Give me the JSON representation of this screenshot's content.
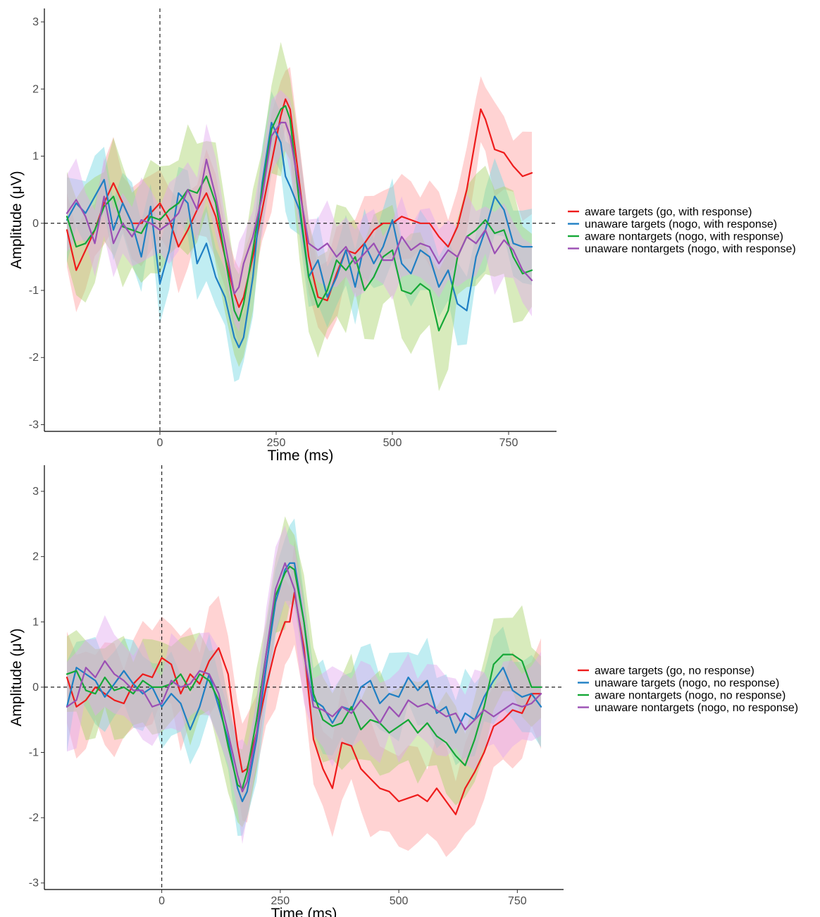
{
  "colors": {
    "aware_targets": "#ee1c1c",
    "unaware_targets": "#1f7fc4",
    "aware_nontargets": "#15a837",
    "unaware_nontargets": "#9b4fb4"
  },
  "chart_data": [
    {
      "type": "line",
      "title": "",
      "xlabel": "Time (ms)",
      "ylabel": "Amplitude (μV)",
      "xlim": [
        -200,
        800
      ],
      "ylim": [
        -3.1,
        3.2
      ],
      "xticks": [
        0,
        250,
        500,
        750
      ],
      "yticks": [
        3,
        2,
        1,
        0,
        -1,
        -2,
        -3
      ],
      "grid": false,
      "legend_position": "right",
      "reference_lines": {
        "x": 0,
        "y": 0
      },
      "series": [
        {
          "name": "aware targets (go, with response)",
          "color_key": "aware_targets",
          "band_color": "#ff9e9e",
          "x": [
            -200,
            -180,
            -160,
            -140,
            -120,
            -100,
            -80,
            -60,
            -40,
            -20,
            0,
            20,
            40,
            60,
            80,
            100,
            120,
            140,
            160,
            170,
            180,
            200,
            220,
            240,
            260,
            270,
            280,
            300,
            320,
            340,
            360,
            380,
            400,
            420,
            440,
            460,
            480,
            500,
            520,
            540,
            560,
            580,
            600,
            620,
            640,
            660,
            680,
            690,
            700,
            720,
            740,
            760,
            780,
            800
          ],
          "y": [
            -0.1,
            -0.7,
            -0.4,
            -0.1,
            0.3,
            0.6,
            0.3,
            0.0,
            0.0,
            0.15,
            0.3,
            0.05,
            -0.35,
            -0.1,
            0.2,
            0.45,
            0.1,
            -0.5,
            -1.05,
            -1.25,
            -1.1,
            -0.5,
            0.2,
            0.9,
            1.6,
            1.85,
            1.7,
            0.6,
            -0.5,
            -1.1,
            -1.15,
            -0.75,
            -0.4,
            -0.45,
            -0.3,
            -0.1,
            0.0,
            0.0,
            0.1,
            0.05,
            0.0,
            0.0,
            -0.2,
            -0.35,
            -0.05,
            0.5,
            1.3,
            1.7,
            1.55,
            1.1,
            1.05,
            0.85,
            0.7,
            0.75
          ],
          "band_half_width": 0.55
        },
        {
          "name": "unaware targets (nogo, with response)",
          "color_key": "unaware_targets",
          "band_color": "#74d7e3",
          "x": [
            -200,
            -180,
            -160,
            -140,
            -120,
            -100,
            -80,
            -60,
            -40,
            -20,
            0,
            20,
            40,
            60,
            80,
            100,
            120,
            140,
            160,
            170,
            180,
            200,
            220,
            240,
            260,
            270,
            280,
            300,
            320,
            340,
            360,
            380,
            400,
            420,
            440,
            460,
            480,
            500,
            520,
            540,
            560,
            580,
            600,
            620,
            640,
            660,
            680,
            700,
            720,
            740,
            760,
            780,
            800
          ],
          "y": [
            0.05,
            0.3,
            0.15,
            0.4,
            0.65,
            -0.1,
            0.3,
            0.0,
            -0.5,
            0.25,
            -0.9,
            -0.4,
            0.45,
            0.3,
            -0.6,
            -0.3,
            -0.8,
            -1.1,
            -1.7,
            -1.85,
            -1.7,
            -0.8,
            0.6,
            1.5,
            1.2,
            0.7,
            0.55,
            0.2,
            -0.8,
            -0.55,
            -1.1,
            -0.8,
            -0.4,
            -0.95,
            -0.3,
            -0.6,
            -0.35,
            0.05,
            -0.6,
            -0.75,
            -0.4,
            -0.5,
            -0.95,
            -0.7,
            -1.2,
            -1.3,
            -0.5,
            -0.1,
            0.4,
            0.2,
            -0.3,
            -0.35,
            -0.35
          ],
          "band_half_width": 0.5
        },
        {
          "name": "aware nontargets (nogo, with response)",
          "color_key": "aware_nontargets",
          "band_color": "#a9d36b",
          "x": [
            -200,
            -180,
            -160,
            -140,
            -120,
            -100,
            -80,
            -60,
            -40,
            -20,
            0,
            20,
            40,
            60,
            80,
            100,
            120,
            140,
            160,
            170,
            180,
            200,
            220,
            240,
            260,
            270,
            280,
            300,
            320,
            340,
            360,
            380,
            400,
            420,
            440,
            460,
            480,
            500,
            520,
            540,
            560,
            580,
            600,
            620,
            640,
            660,
            680,
            700,
            720,
            740,
            760,
            780,
            800
          ],
          "y": [
            0.1,
            -0.35,
            -0.3,
            -0.1,
            0.25,
            0.4,
            -0.05,
            -0.1,
            -0.15,
            0.1,
            0.05,
            0.2,
            0.3,
            0.5,
            0.45,
            0.7,
            0.3,
            -0.5,
            -1.3,
            -1.45,
            -1.2,
            -0.4,
            0.5,
            1.4,
            1.7,
            1.75,
            1.55,
            0.3,
            -0.8,
            -1.25,
            -1.0,
            -0.55,
            -0.7,
            -0.5,
            -1.0,
            -0.8,
            -0.5,
            -0.4,
            -1.0,
            -1.05,
            -0.9,
            -1.0,
            -1.6,
            -1.3,
            -0.5,
            -0.2,
            -0.1,
            0.05,
            -0.15,
            -0.1,
            -0.5,
            -0.75,
            -0.7
          ],
          "band_half_width": 0.75
        },
        {
          "name": "unaware nontargets (nogo,  with response)",
          "color_key": "unaware_nontargets",
          "band_color": "#e3a8f0",
          "x": [
            -200,
            -180,
            -160,
            -140,
            -120,
            -100,
            -80,
            -60,
            -40,
            -20,
            0,
            20,
            40,
            60,
            80,
            100,
            120,
            140,
            160,
            170,
            180,
            200,
            220,
            240,
            260,
            270,
            280,
            300,
            320,
            340,
            360,
            380,
            400,
            420,
            440,
            460,
            480,
            500,
            520,
            540,
            560,
            580,
            600,
            620,
            640,
            660,
            680,
            700,
            720,
            740,
            760,
            780,
            800
          ],
          "y": [
            0.15,
            0.35,
            0.1,
            -0.3,
            0.4,
            -0.3,
            0.0,
            -0.2,
            0.05,
            0.0,
            -0.1,
            0.0,
            0.15,
            0.5,
            0.2,
            0.95,
            0.4,
            -0.3,
            -1.05,
            -0.95,
            -0.6,
            -0.2,
            0.4,
            1.3,
            1.5,
            1.5,
            1.3,
            0.5,
            -0.3,
            -0.4,
            -0.3,
            -0.5,
            -0.35,
            -0.6,
            -0.45,
            -0.3,
            -0.55,
            -0.55,
            -0.2,
            -0.4,
            -0.3,
            -0.35,
            -0.6,
            -0.4,
            -0.5,
            -0.2,
            -0.3,
            -0.1,
            -0.45,
            -0.25,
            -0.4,
            -0.7,
            -0.85
          ],
          "band_half_width": 0.5
        }
      ]
    },
    {
      "type": "line",
      "title": "",
      "xlabel": "Time (ms)",
      "ylabel": "Amplitude (μV)",
      "xlim": [
        -200,
        800
      ],
      "ylim": [
        -3.1,
        3.4
      ],
      "xticks": [
        0,
        250,
        500,
        750
      ],
      "yticks": [
        3,
        2,
        1,
        0,
        -1,
        -2,
        -3
      ],
      "grid": false,
      "legend_position": "right",
      "reference_lines": {
        "x": 0,
        "y": 0
      },
      "series": [
        {
          "name": "aware targets (go, no response)",
          "color_key": "aware_targets",
          "band_color": "#ff9e9e",
          "x": [
            -200,
            -180,
            -160,
            -140,
            -120,
            -100,
            -80,
            -60,
            -40,
            -20,
            0,
            20,
            40,
            60,
            80,
            100,
            120,
            140,
            160,
            170,
            180,
            200,
            220,
            240,
            260,
            270,
            280,
            300,
            320,
            340,
            360,
            380,
            400,
            420,
            440,
            460,
            480,
            500,
            520,
            540,
            560,
            580,
            600,
            620,
            640,
            660,
            680,
            700,
            720,
            740,
            760,
            780,
            800
          ],
          "y": [
            0.15,
            -0.3,
            -0.2,
            0.0,
            -0.1,
            -0.2,
            -0.25,
            0.05,
            0.2,
            0.15,
            0.45,
            0.35,
            -0.1,
            0.2,
            0.05,
            0.4,
            0.6,
            0.2,
            -0.9,
            -1.3,
            -1.25,
            -0.7,
            0.0,
            0.6,
            1.0,
            1.0,
            1.45,
            0.6,
            -0.8,
            -1.25,
            -1.55,
            -0.85,
            -0.9,
            -1.25,
            -1.4,
            -1.55,
            -1.6,
            -1.75,
            -1.7,
            -1.65,
            -1.75,
            -1.55,
            -1.75,
            -1.95,
            -1.55,
            -1.3,
            -1.0,
            -0.6,
            -0.5,
            -0.35,
            -0.4,
            -0.1,
            -0.1
          ],
          "band_half_width": 0.7
        },
        {
          "name": "unaware targets (nogo, no response)",
          "color_key": "unaware_targets",
          "band_color": "#74d7e3",
          "x": [
            -200,
            -180,
            -160,
            -140,
            -120,
            -100,
            -80,
            -60,
            -40,
            -20,
            0,
            20,
            40,
            60,
            80,
            100,
            120,
            140,
            160,
            170,
            180,
            200,
            220,
            240,
            260,
            270,
            280,
            300,
            320,
            340,
            360,
            380,
            400,
            420,
            440,
            460,
            480,
            500,
            520,
            540,
            560,
            580,
            600,
            620,
            640,
            660,
            680,
            700,
            720,
            740,
            760,
            780,
            800
          ],
          "y": [
            -0.3,
            0.3,
            0.2,
            0.1,
            -0.15,
            0.05,
            0.25,
            0.05,
            -0.1,
            0.0,
            -0.3,
            -0.1,
            -0.25,
            -0.65,
            -0.3,
            0.2,
            -0.3,
            -0.8,
            -1.55,
            -1.75,
            -1.6,
            -0.8,
            0.3,
            1.3,
            1.8,
            1.9,
            1.9,
            1.0,
            -0.2,
            -0.3,
            -0.55,
            -0.3,
            -0.35,
            0.0,
            0.1,
            -0.25,
            -0.1,
            -0.15,
            0.15,
            -0.05,
            0.1,
            -0.4,
            -0.3,
            -0.7,
            -0.4,
            -0.5,
            -0.15,
            0.1,
            0.3,
            -0.05,
            -0.15,
            -0.1,
            -0.3
          ],
          "band_half_width": 0.55
        },
        {
          "name": "aware nontargets (nogo, no response)",
          "color_key": "aware_nontargets",
          "band_color": "#a9d36b",
          "x": [
            -200,
            -180,
            -160,
            -140,
            -120,
            -100,
            -80,
            -60,
            -40,
            -20,
            0,
            20,
            40,
            60,
            80,
            100,
            120,
            140,
            160,
            170,
            180,
            200,
            220,
            240,
            260,
            270,
            280,
            300,
            320,
            340,
            360,
            380,
            400,
            420,
            440,
            460,
            480,
            500,
            520,
            540,
            560,
            580,
            600,
            620,
            640,
            660,
            680,
            700,
            720,
            740,
            760,
            780,
            800
          ],
          "y": [
            0.2,
            0.25,
            -0.05,
            -0.1,
            0.15,
            -0.05,
            0.0,
            -0.1,
            0.1,
            0.0,
            0.0,
            0.05,
            0.2,
            -0.05,
            0.2,
            0.1,
            -0.2,
            -0.9,
            -1.5,
            -1.55,
            -1.3,
            -0.5,
            0.5,
            1.4,
            1.75,
            1.85,
            1.8,
            1.0,
            -0.1,
            -0.5,
            -0.6,
            -0.55,
            -0.3,
            -0.65,
            -0.5,
            -0.55,
            -0.7,
            -0.6,
            -0.5,
            -0.7,
            -0.55,
            -0.75,
            -0.85,
            -1.05,
            -1.2,
            -0.8,
            -0.3,
            0.35,
            0.5,
            0.5,
            0.4,
            0.0,
            0.0
          ],
          "band_half_width": 0.65
        },
        {
          "name": "unaware nontargets (nogo,  no response)",
          "color_key": "unaware_nontargets",
          "band_color": "#e3a8f0",
          "x": [
            -200,
            -180,
            -160,
            -140,
            -120,
            -100,
            -80,
            -60,
            -40,
            -20,
            0,
            20,
            40,
            60,
            80,
            100,
            120,
            140,
            160,
            170,
            180,
            200,
            220,
            240,
            260,
            270,
            280,
            300,
            320,
            340,
            360,
            380,
            400,
            420,
            440,
            460,
            480,
            500,
            520,
            540,
            560,
            580,
            600,
            620,
            640,
            660,
            680,
            700,
            720,
            740,
            760,
            780,
            800
          ],
          "y": [
            -0.3,
            -0.2,
            0.3,
            0.15,
            0.4,
            0.2,
            0.1,
            -0.05,
            -0.05,
            -0.3,
            -0.25,
            0.1,
            0.0,
            0.05,
            0.25,
            0.2,
            -0.1,
            -0.7,
            -1.35,
            -1.6,
            -1.45,
            -0.7,
            0.5,
            1.5,
            1.9,
            1.7,
            1.5,
            0.5,
            -0.3,
            -0.35,
            -0.45,
            -0.3,
            -0.4,
            -0.2,
            -0.35,
            -0.55,
            -0.3,
            -0.45,
            -0.2,
            -0.3,
            -0.25,
            -0.35,
            -0.45,
            -0.4,
            -0.65,
            -0.5,
            -0.35,
            -0.45,
            -0.35,
            -0.25,
            -0.3,
            -0.25,
            -0.1
          ],
          "band_half_width": 0.6
        }
      ]
    }
  ]
}
